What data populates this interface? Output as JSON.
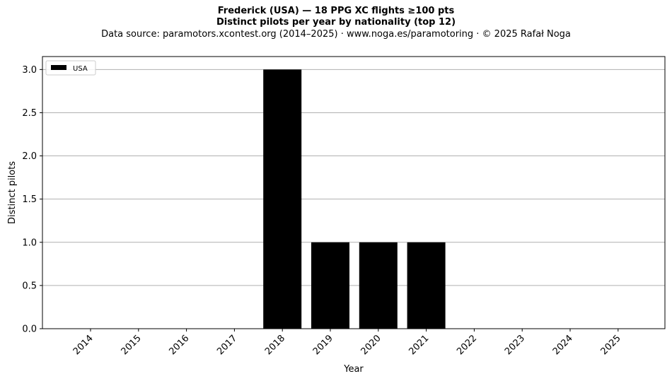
{
  "header": {
    "title": "Frederick (USA)  —  18 PPG XC flights ≥100 pts",
    "subtitle": "Distinct pilots per year by nationality (top 12)",
    "source": "Data source: paramotors.xcontest.org (2014–2025)  ·  www.noga.es/paramotoring  ·  © 2025 Rafał Noga"
  },
  "chart_data": {
    "type": "bar",
    "categories": [
      "2014",
      "2015",
      "2016",
      "2017",
      "2018",
      "2019",
      "2020",
      "2021",
      "2022",
      "2023",
      "2024",
      "2025"
    ],
    "series": [
      {
        "name": "USA",
        "color": "#000000",
        "values": [
          0,
          0,
          0,
          0,
          3,
          1,
          1,
          1,
          0,
          0,
          0,
          0
        ]
      }
    ],
    "xlabel": "Year",
    "ylabel": "Distinct pilots",
    "ylim": [
      0,
      3.15
    ],
    "yticks": [
      0.0,
      0.5,
      1.0,
      1.5,
      2.0,
      2.5,
      3.0
    ],
    "ytick_labels": [
      "0.0",
      "0.5",
      "1.0",
      "1.5",
      "2.0",
      "2.5",
      "3.0"
    ],
    "grid": "horizontal",
    "legend_position": "top-left",
    "grid_color": "#b0b0b0"
  }
}
